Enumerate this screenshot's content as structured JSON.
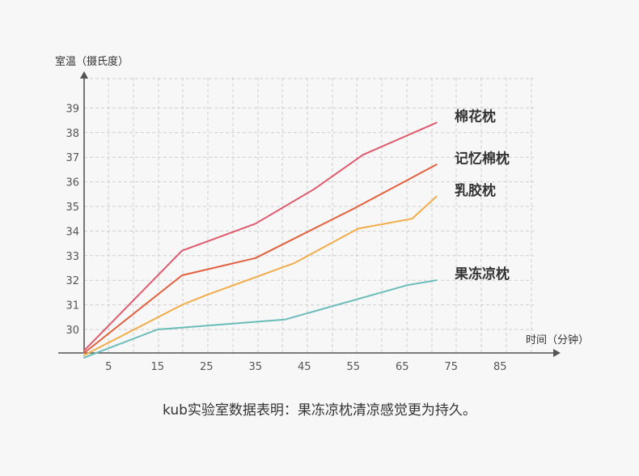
{
  "chart_data": {
    "type": "line",
    "ylabel": "室温（摄氏度）",
    "xlabel": "时间（分钟）",
    "xticks": [
      5,
      15,
      25,
      35,
      45,
      55,
      65,
      75,
      85
    ],
    "yticks": [
      30,
      31,
      32,
      33,
      34,
      35,
      36,
      37,
      38,
      39
    ],
    "grid": true,
    "series": [
      {
        "name": "棉花枕",
        "color": "#de5b6d",
        "points": [
          [
            0,
            29.1
          ],
          [
            20,
            33.2
          ],
          [
            35,
            34.3
          ],
          [
            47,
            35.7
          ],
          [
            57,
            37.1
          ],
          [
            72,
            38.4
          ]
        ]
      },
      {
        "name": "记忆棉枕",
        "color": "#e2603d",
        "points": [
          [
            0,
            29.0
          ],
          [
            20,
            32.2
          ],
          [
            35,
            32.9
          ],
          [
            55,
            34.9
          ],
          [
            72,
            36.7
          ]
        ]
      },
      {
        "name": "乳胶枕",
        "color": "#f2ad4a",
        "points": [
          [
            0,
            28.9
          ],
          [
            20,
            31.0
          ],
          [
            25,
            31.4
          ],
          [
            43,
            32.7
          ],
          [
            56,
            34.1
          ],
          [
            67,
            34.5
          ],
          [
            72,
            35.4
          ]
        ]
      },
      {
        "name": "果冻凉枕",
        "color": "#6abcba",
        "points": [
          [
            0,
            28.8
          ],
          [
            15,
            30.0
          ],
          [
            41,
            30.4
          ],
          [
            66,
            31.8
          ],
          [
            72,
            32.0
          ]
        ]
      }
    ]
  },
  "caption": "kub实验室数据表明：果冻凉枕清凉感觉更为持久。"
}
